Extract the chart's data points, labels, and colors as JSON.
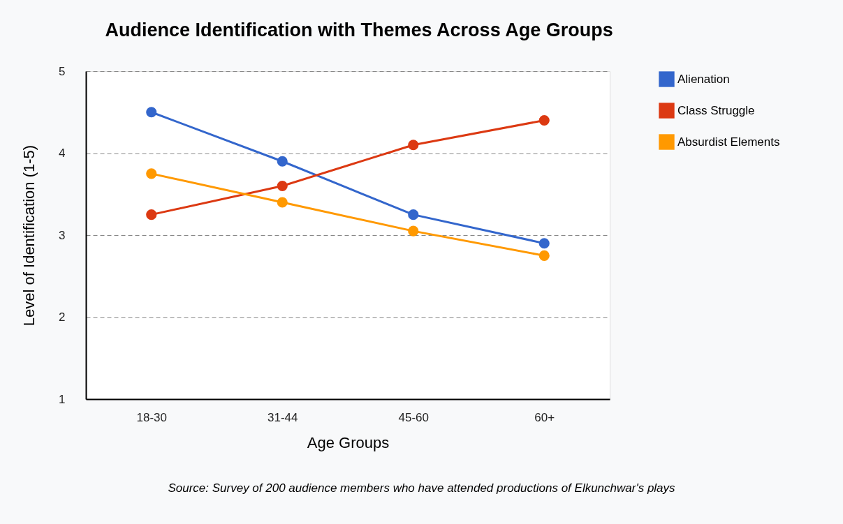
{
  "chart_data": {
    "type": "line",
    "title": "Audience Identification with Themes Across Age Groups",
    "xlabel": "Age Groups",
    "ylabel": "Level of Identification (1-5)",
    "categories": [
      "18-30",
      "31-44",
      "45-60",
      "60+"
    ],
    "series": [
      {
        "name": "Alienation",
        "color": "#3366cc",
        "values": [
          4.5,
          3.9,
          3.25,
          2.9
        ]
      },
      {
        "name": "Class Struggle",
        "color": "#dc3912",
        "values": [
          3.25,
          3.6,
          4.1,
          4.4
        ]
      },
      {
        "name": "Absurdist Elements",
        "color": "#ff9900",
        "values": [
          3.75,
          3.4,
          3.05,
          2.75
        ]
      }
    ],
    "ylim": [
      1,
      5
    ],
    "yticks": [
      1,
      2,
      3,
      4,
      5
    ],
    "grid": "y",
    "legend": "right",
    "marker": "circle",
    "line_style": "solid",
    "annotations": [
      "Source: Survey of 200 audience members who have attended productions of Elkunchwar's plays"
    ]
  }
}
